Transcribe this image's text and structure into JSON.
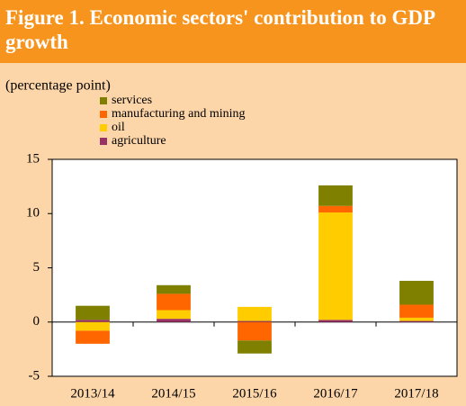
{
  "chart_data": {
    "type": "bar",
    "stacked": true,
    "title": "Figure 1. Economic sectors' contribution to GDP growth",
    "y_label": "(percentage point)",
    "categories": [
      "2013/14",
      "2014/15",
      "2015/16",
      "2016/17",
      "2017/18"
    ],
    "series": [
      {
        "name": "agriculture",
        "color": "#993366",
        "values": [
          0.2,
          0.3,
          0.1,
          0.2,
          0.1
        ]
      },
      {
        "name": "oil",
        "color": "#ffcc00",
        "values": [
          -0.8,
          0.8,
          1.3,
          9.9,
          0.3
        ]
      },
      {
        "name": "manufacturing and mining",
        "color": "#ff6600",
        "values": [
          -1.2,
          1.5,
          -1.7,
          0.6,
          1.2
        ]
      },
      {
        "name": "services",
        "color": "#808000",
        "values": [
          1.3,
          0.8,
          -1.2,
          1.9,
          2.2
        ]
      }
    ],
    "ylim": [
      -5,
      15
    ],
    "yticks": [
      -5,
      0,
      5,
      10,
      15
    ],
    "grid": false
  }
}
